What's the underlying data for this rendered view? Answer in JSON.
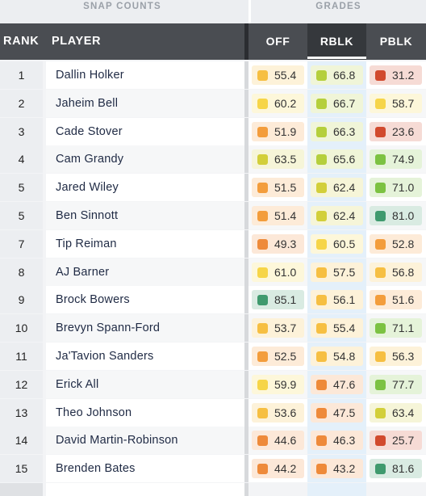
{
  "group_headers": {
    "snap_counts": "SNAP COUNTS",
    "grades": "GRADES"
  },
  "columns": {
    "rank": "RANK",
    "player": "PLAYER",
    "off": "OFF",
    "rblk": "RBLK",
    "pblk": "PBLK"
  },
  "grade_colors": {
    "dark_green": "#3f9a6e",
    "green": "#7cc242",
    "lime": "#b5cf3c",
    "yellow_green": "#d2cf3a",
    "yellow": "#f6d548",
    "light_orange": "#f6bf42",
    "orange": "#f39d3c",
    "dark_orange": "#ee8a3a",
    "red": "#d14a2e"
  },
  "rows": [
    {
      "rank": "1",
      "player": "Dallin Holker",
      "off": {
        "value": "55.4",
        "color": "light_orange"
      },
      "rblk": {
        "value": "66.8",
        "color": "lime"
      },
      "pblk": {
        "value": "31.2",
        "color": "red"
      }
    },
    {
      "rank": "2",
      "player": "Jaheim Bell",
      "off": {
        "value": "60.2",
        "color": "yellow"
      },
      "rblk": {
        "value": "66.7",
        "color": "lime"
      },
      "pblk": {
        "value": "58.7",
        "color": "yellow"
      }
    },
    {
      "rank": "3",
      "player": "Cade Stover",
      "off": {
        "value": "51.9",
        "color": "orange"
      },
      "rblk": {
        "value": "66.3",
        "color": "lime"
      },
      "pblk": {
        "value": "23.6",
        "color": "red"
      }
    },
    {
      "rank": "4",
      "player": "Cam Grandy",
      "off": {
        "value": "63.5",
        "color": "yellow_green"
      },
      "rblk": {
        "value": "65.6",
        "color": "lime"
      },
      "pblk": {
        "value": "74.9",
        "color": "green"
      }
    },
    {
      "rank": "5",
      "player": "Jared Wiley",
      "off": {
        "value": "51.5",
        "color": "orange"
      },
      "rblk": {
        "value": "62.4",
        "color": "yellow_green"
      },
      "pblk": {
        "value": "71.0",
        "color": "green"
      }
    },
    {
      "rank": "5",
      "player": "Ben Sinnott",
      "off": {
        "value": "51.4",
        "color": "orange"
      },
      "rblk": {
        "value": "62.4",
        "color": "yellow_green"
      },
      "pblk": {
        "value": "81.0",
        "color": "dark_green"
      }
    },
    {
      "rank": "7",
      "player": "Tip Reiman",
      "off": {
        "value": "49.3",
        "color": "dark_orange"
      },
      "rblk": {
        "value": "60.5",
        "color": "yellow"
      },
      "pblk": {
        "value": "52.8",
        "color": "orange"
      }
    },
    {
      "rank": "8",
      "player": "AJ Barner",
      "off": {
        "value": "61.0",
        "color": "yellow"
      },
      "rblk": {
        "value": "57.5",
        "color": "light_orange"
      },
      "pblk": {
        "value": "56.8",
        "color": "light_orange"
      }
    },
    {
      "rank": "9",
      "player": "Brock Bowers",
      "off": {
        "value": "85.1",
        "color": "dark_green"
      },
      "rblk": {
        "value": "56.1",
        "color": "light_orange"
      },
      "pblk": {
        "value": "51.6",
        "color": "orange"
      }
    },
    {
      "rank": "10",
      "player": "Brevyn Spann-Ford",
      "off": {
        "value": "53.7",
        "color": "light_orange"
      },
      "rblk": {
        "value": "55.4",
        "color": "light_orange"
      },
      "pblk": {
        "value": "71.1",
        "color": "green"
      }
    },
    {
      "rank": "11",
      "player": "Ja'Tavion Sanders",
      "off": {
        "value": "52.5",
        "color": "orange"
      },
      "rblk": {
        "value": "54.8",
        "color": "light_orange"
      },
      "pblk": {
        "value": "56.3",
        "color": "light_orange"
      }
    },
    {
      "rank": "12",
      "player": "Erick All",
      "off": {
        "value": "59.9",
        "color": "yellow"
      },
      "rblk": {
        "value": "47.6",
        "color": "dark_orange"
      },
      "pblk": {
        "value": "77.7",
        "color": "green"
      }
    },
    {
      "rank": "13",
      "player": "Theo Johnson",
      "off": {
        "value": "53.6",
        "color": "light_orange"
      },
      "rblk": {
        "value": "47.5",
        "color": "dark_orange"
      },
      "pblk": {
        "value": "63.4",
        "color": "yellow_green"
      }
    },
    {
      "rank": "14",
      "player": "David Martin-Robinson",
      "off": {
        "value": "44.6",
        "color": "dark_orange"
      },
      "rblk": {
        "value": "46.3",
        "color": "dark_orange"
      },
      "pblk": {
        "value": "25.7",
        "color": "red"
      }
    },
    {
      "rank": "15",
      "player": "Brenden Bates",
      "off": {
        "value": "44.2",
        "color": "dark_orange"
      },
      "rblk": {
        "value": "43.2",
        "color": "dark_orange"
      },
      "pblk": {
        "value": "81.6",
        "color": "dark_green"
      }
    }
  ]
}
